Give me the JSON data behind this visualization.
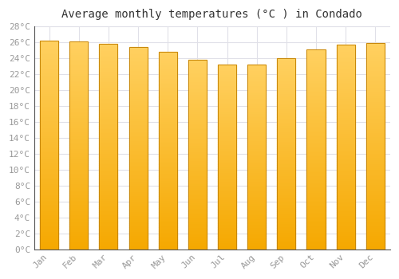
{
  "title": "Average monthly temperatures (°C ) in Condado",
  "months": [
    "Jan",
    "Feb",
    "Mar",
    "Apr",
    "May",
    "Jun",
    "Jul",
    "Aug",
    "Sep",
    "Oct",
    "Nov",
    "Dec"
  ],
  "values": [
    26.2,
    26.1,
    25.8,
    25.4,
    24.8,
    23.8,
    23.2,
    23.2,
    24.0,
    25.1,
    25.7,
    25.9
  ],
  "bar_color_top": "#FFD060",
  "bar_color_bottom": "#F5A800",
  "bar_color_edge": "#C8870A",
  "ylim": [
    0,
    28
  ],
  "ytick_step": 2,
  "background_color": "#ffffff",
  "grid_color": "#e0e0e8",
  "title_fontsize": 10,
  "tick_fontsize": 8,
  "tick_font_color": "#999999",
  "bar_width": 0.62,
  "figsize": [
    5.0,
    3.5
  ],
  "dpi": 100
}
